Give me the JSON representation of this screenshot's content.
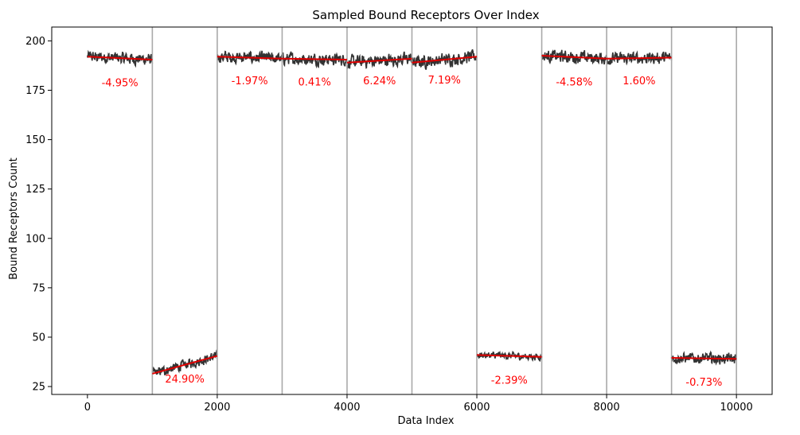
{
  "chart_data": {
    "type": "line",
    "title": "Sampled Bound Receptors Over Index",
    "xlabel": "Data Index",
    "ylabel": "Bound Receptors Count",
    "xlim": [
      -550,
      10550
    ],
    "ylim": [
      21,
      207
    ],
    "xticks": [
      0,
      2000,
      4000,
      6000,
      8000,
      10000
    ],
    "yticks": [
      25,
      50,
      75,
      100,
      125,
      150,
      175,
      200
    ],
    "grid": false,
    "legend": "none",
    "colors": {
      "signal": "#333333",
      "trend": "#e00000",
      "divider": "#a9a9a9",
      "annotation": "#ff0000"
    },
    "dividers": [
      1000,
      2000,
      3000,
      4000,
      5000,
      6000,
      7000,
      8000,
      9000,
      10000
    ],
    "segments": [
      {
        "x_start": 0,
        "x_end": 1000,
        "trend_start": 192.0,
        "trend_end": 190.5,
        "noise": 2.2,
        "label": "-4.95%",
        "label_x": 500,
        "label_y": 177
      },
      {
        "x_start": 1000,
        "x_end": 2000,
        "trend_start": 31.5,
        "trend_end": 40.5,
        "noise": 1.8,
        "label": "24.90%",
        "label_x": 1500,
        "label_y": 27
      },
      {
        "x_start": 2000,
        "x_end": 3000,
        "trend_start": 192.0,
        "trend_end": 191.0,
        "noise": 2.2,
        "label": "-1.97%",
        "label_x": 2500,
        "label_y": 178
      },
      {
        "x_start": 3000,
        "x_end": 4000,
        "trend_start": 191.0,
        "trend_end": 190.5,
        "noise": 2.2,
        "label": "0.41%",
        "label_x": 3500,
        "label_y": 177.5
      },
      {
        "x_start": 4000,
        "x_end": 5000,
        "trend_start": 189.0,
        "trend_end": 191.0,
        "noise": 2.4,
        "label": "6.24%",
        "label_x": 4500,
        "label_y": 178
      },
      {
        "x_start": 5000,
        "x_end": 6000,
        "trend_start": 189.0,
        "trend_end": 192.0,
        "noise": 2.4,
        "label": "7.19%",
        "label_x": 5500,
        "label_y": 178.5
      },
      {
        "x_start": 6000,
        "x_end": 7000,
        "trend_start": 41.0,
        "trend_end": 40.0,
        "noise": 1.3,
        "label": "-2.39%",
        "label_x": 6500,
        "label_y": 26.5
      },
      {
        "x_start": 7000,
        "x_end": 8000,
        "trend_start": 192.5,
        "trend_end": 191.0,
        "noise": 2.3,
        "label": "-4.58%",
        "label_x": 7500,
        "label_y": 177.5
      },
      {
        "x_start": 8000,
        "x_end": 9000,
        "trend_start": 191.0,
        "trend_end": 191.5,
        "noise": 2.2,
        "label": "1.60%",
        "label_x": 8500,
        "label_y": 178
      },
      {
        "x_start": 9000,
        "x_end": 10000,
        "trend_start": 39.5,
        "trend_end": 39.0,
        "noise": 2.0,
        "label": "-0.73%",
        "label_x": 9500,
        "label_y": 25.5
      }
    ]
  }
}
